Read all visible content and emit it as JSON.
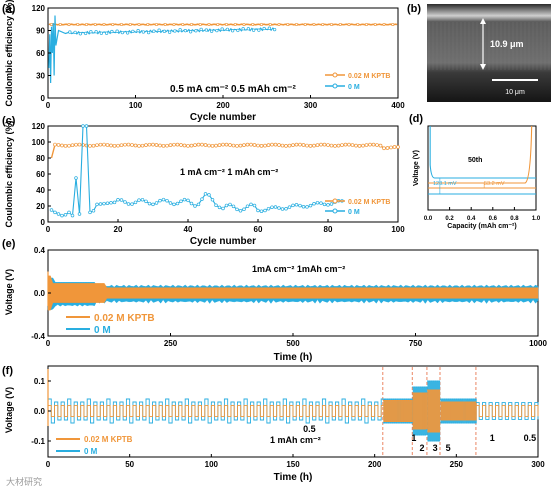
{
  "colors": {
    "orange": "#f0963a",
    "blue": "#29aee0",
    "dash": "#e6683c"
  },
  "panel_a": {
    "label": "(a)",
    "xlabel": "Cycle number",
    "ylabel": "Coulombic efficiency (%)",
    "xticks": [
      "0",
      "100",
      "200",
      "300",
      "400"
    ],
    "yticks": [
      "0",
      "30",
      "60",
      "90",
      "120"
    ],
    "annotation": "0.5 mA cm⁻²   0.5 mAh cm⁻²",
    "legend": [
      "0.02 M KPTB",
      "0 M"
    ]
  },
  "panel_b": {
    "label": "(b)",
    "thickness": "10.9 μm",
    "scale": "10 μm"
  },
  "panel_c": {
    "label": "(c)",
    "xlabel": "Cycle number",
    "ylabel": "Coulombic efficiency (%)",
    "xticks": [
      "0",
      "20",
      "40",
      "60",
      "80",
      "100"
    ],
    "yticks": [
      "0",
      "20",
      "40",
      "60",
      "80",
      "100",
      "120"
    ],
    "annotation": "1 mA cm⁻²  1 mAh cm⁻²",
    "legend": [
      "0.02 M KPTB",
      "0 M"
    ]
  },
  "panel_d": {
    "label": "(d)",
    "xlabel": "Capacity (mAh cm⁻²)",
    "ylabel": "Voltage (V)",
    "xticks": [
      "0.0",
      "0.2",
      "0.4",
      "0.6",
      "0.8",
      "1.0"
    ],
    "annotation": "50th",
    "v1": "123.1 mV",
    "v2": "53.2 mV"
  },
  "panel_e": {
    "label": "(e)",
    "xlabel": "Time (h)",
    "ylabel": "Voltage (V)",
    "xticks": [
      "0",
      "250",
      "500",
      "750",
      "1000"
    ],
    "yticks": [
      "-0.4",
      "0.0",
      "0.4"
    ],
    "annotation": "1mA cm⁻²   1mAh cm⁻²",
    "legend": [
      "0.02 M KPTB",
      "0 M"
    ]
  },
  "panel_f": {
    "label": "(f)",
    "xlabel": "Time (h)",
    "ylabel": "Voltage (V)",
    "xticks": [
      "0",
      "50",
      "100",
      "150",
      "200",
      "250",
      "300"
    ],
    "yticks": [
      "-0.1",
      "0.0",
      "0.1"
    ],
    "rate_labels": [
      "0.5",
      "1",
      "2",
      "3",
      "5",
      "1",
      "0.5"
    ],
    "annotation": "1 mAh cm⁻²",
    "legend": [
      "0.02 M KPTB",
      "0 M"
    ]
  },
  "watermark": "大材研究",
  "chart_data": [
    {
      "panel": "a",
      "type": "line",
      "xlim": [
        0,
        400
      ],
      "ylim": [
        0,
        120
      ],
      "series": [
        {
          "name": "0.02 M KPTB",
          "x": [
            1,
            50,
            100,
            150,
            200,
            250,
            300,
            350,
            400
          ],
          "values": [
            98,
            98,
            98,
            98,
            98,
            98,
            98,
            98,
            98
          ]
        },
        {
          "name": "0 M",
          "x": [
            1,
            5,
            10,
            20,
            50,
            100,
            150,
            200,
            220,
            240,
            260
          ],
          "values": [
            40,
            100,
            85,
            88,
            86,
            88,
            90,
            92,
            88,
            95,
            97
          ]
        }
      ]
    },
    {
      "panel": "c",
      "type": "line",
      "xlim": [
        0,
        100
      ],
      "ylim": [
        0,
        120
      ],
      "series": [
        {
          "name": "0.02 M KPTB",
          "x": [
            1,
            2,
            10,
            50,
            100
          ],
          "values": [
            80,
            96,
            97,
            96,
            92
          ]
        },
        {
          "name": "0 M",
          "x": [
            1,
            5,
            8,
            10,
            20,
            40,
            60,
            84
          ],
          "values": [
            15,
            10,
            55,
            120,
            25,
            30,
            13,
            25
          ]
        }
      ]
    },
    {
      "panel": "d",
      "type": "line",
      "xlim": [
        0,
        1.0
      ],
      "series": [
        {
          "name": "0.02 M KPTB",
          "values": []
        },
        {
          "name": "0 M",
          "values": []
        }
      ]
    },
    {
      "panel": "e",
      "type": "line",
      "xlim": [
        0,
        1000
      ],
      "ylim": [
        -0.4,
        0.4
      ],
      "series": [
        {
          "name": "0.02 M KPTB",
          "amplitude": [
            0.16,
            0.06
          ]
        },
        {
          "name": "0 M",
          "amplitude": [
            0.12,
            0.07
          ]
        }
      ]
    },
    {
      "panel": "f",
      "type": "line",
      "xlim": [
        0,
        300
      ],
      "ylim": [
        -0.15,
        0.15
      ],
      "segments_h": [
        0,
        205,
        223,
        232,
        240,
        262,
        300
      ],
      "current_labels": [
        "0.5",
        "1",
        "2",
        "3",
        "5",
        "1",
        "0.5"
      ]
    }
  ]
}
